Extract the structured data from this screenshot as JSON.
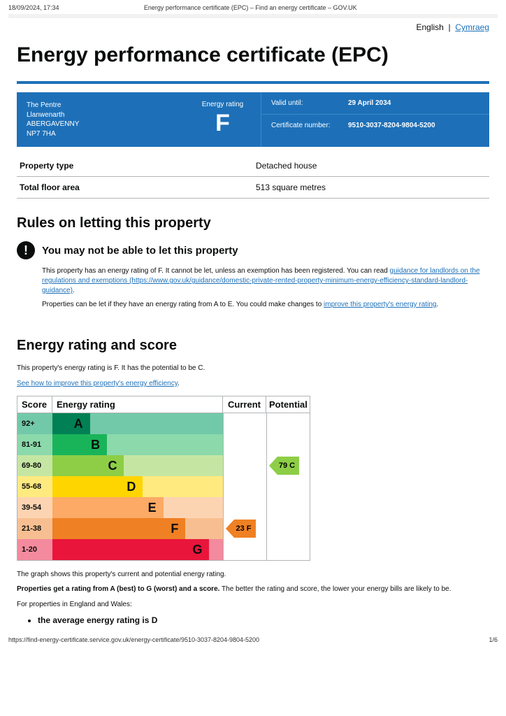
{
  "print": {
    "timestamp": "18/09/2024, 17:34",
    "title": "Energy performance certificate (EPC) – Find an energy certificate – GOV.UK",
    "url": "https://find-energy-certificate.service.gov.uk/energy-certificate/9510-3037-8204-9804-5200",
    "page": "1/6"
  },
  "lang": {
    "english": "English",
    "sep": "|",
    "cymraeg": "Cymraeg"
  },
  "h1": "Energy performance certificate (EPC)",
  "summary": {
    "address": [
      "The Pentre",
      "Llanwenarth",
      "ABERGAVENNY",
      "NP7 7HA"
    ],
    "rating_label": "Energy rating",
    "rating": "F",
    "valid_label": "Valid until:",
    "valid_value": "29 April 2034",
    "cert_label": "Certificate number:",
    "cert_value": "9510-3037-8204-9804-5200",
    "box_bg": "#1d70b8"
  },
  "props": {
    "rows": [
      {
        "label": "Property type",
        "value": "Detached house"
      },
      {
        "label": "Total floor area",
        "value": "513 square metres"
      }
    ]
  },
  "rules": {
    "heading": "Rules on letting this property",
    "warning": "You may not be able to let this property",
    "p1a": "This property has an energy rating of F. It cannot be let, unless an exemption has been registered. You can read ",
    "p1link": "guidance for landlords on the regulations and exemptions (https://www.gov.uk/guidance/domestic-private-rented-property-minimum-energy-efficiency-standard-landlord-guidance)",
    "p1b": ".",
    "p2a": "Properties can be let if they have an energy rating from A to E. You could make changes to ",
    "p2link": "improve this property's energy rating",
    "p2b": "."
  },
  "rating_section": {
    "heading": "Energy rating and score",
    "intro": "This property's energy rating is F. It has the potential to be C.",
    "link": "See how to improve this property's energy efficiency",
    "caption": "The graph shows this property's current and potential energy rating.",
    "bold_line_a": "Properties get a rating from A (best) to G (worst) and a score.",
    "bold_line_b": " The better the rating and score, the lower your energy bills are likely to be.",
    "for_props": "For properties in England and Wales:",
    "bullet1": "the average energy rating is D"
  },
  "chart": {
    "headers": {
      "score": "Score",
      "rating": "Energy rating",
      "current": "Current",
      "potential": "Potential"
    },
    "bands": [
      {
        "score": "92+",
        "letter": "A",
        "bg": "#008054",
        "score_bg": "#72c9a9",
        "width_pct": 22
      },
      {
        "score": "81-91",
        "letter": "B",
        "bg": "#19b459",
        "score_bg": "#8cd9ab",
        "width_pct": 32
      },
      {
        "score": "69-80",
        "letter": "C",
        "bg": "#8dce46",
        "score_bg": "#c5e6a2",
        "width_pct": 42
      },
      {
        "score": "55-68",
        "letter": "D",
        "bg": "#ffd500",
        "score_bg": "#ffea80",
        "width_pct": 53
      },
      {
        "score": "39-54",
        "letter": "E",
        "bg": "#fcaa65",
        "score_bg": "#fdd4b2",
        "width_pct": 65
      },
      {
        "score": "21-38",
        "letter": "F",
        "bg": "#ef8023",
        "score_bg": "#f7bf91",
        "width_pct": 78
      },
      {
        "score": "1-20",
        "letter": "G",
        "bg": "#e9153b",
        "score_bg": "#f48a9d",
        "width_pct": 92
      }
    ],
    "current": {
      "row": 5,
      "text": "23  F",
      "bg": "#ef8023"
    },
    "potential": {
      "row": 2,
      "text": "79  C",
      "bg": "#8dce46"
    }
  }
}
